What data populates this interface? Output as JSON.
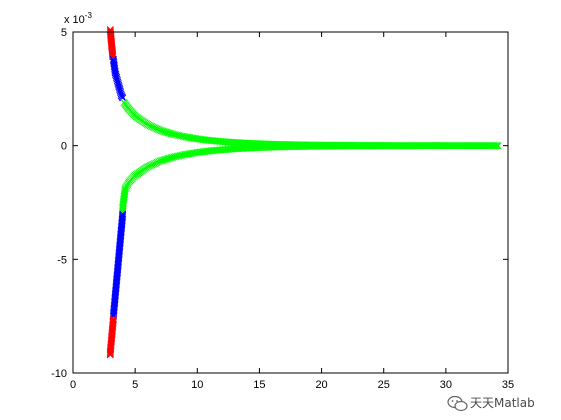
{
  "chart_data": {
    "type": "scatter",
    "title": "",
    "xlabel": "",
    "ylabel": "",
    "xlim": [
      0,
      35
    ],
    "ylim": [
      -0.01,
      0.005
    ],
    "x_ticks": [
      {
        "value": 0,
        "label": "0"
      },
      {
        "value": 5,
        "label": "5"
      },
      {
        "value": 10,
        "label": "10"
      },
      {
        "value": 15,
        "label": "15"
      },
      {
        "value": 20,
        "label": "20"
      },
      {
        "value": 25,
        "label": "25"
      },
      {
        "value": 30,
        "label": "30"
      },
      {
        "value": 35,
        "label": "35"
      }
    ],
    "y_ticks": [
      {
        "value": 0.005,
        "label": "5"
      },
      {
        "value": 0,
        "label": "0"
      },
      {
        "value": -0.005,
        "label": "-5"
      },
      {
        "value": -0.01,
        "label": "-10"
      }
    ],
    "y_exponent_label": "x 10",
    "y_exponent_power": "-3",
    "grid": false,
    "legend": "none",
    "series": [
      {
        "color": "#ff0000",
        "marker": "x",
        "points": [
          [
            3.0,
            0.0051
          ],
          [
            3.02,
            0.00495
          ],
          [
            3.05,
            0.0048
          ],
          [
            3.07,
            0.00465
          ],
          [
            3.1,
            0.0045
          ],
          [
            3.12,
            0.00435
          ],
          [
            3.15,
            0.0042
          ],
          [
            3.18,
            0.00405
          ],
          [
            3.2,
            0.0039
          ]
        ]
      },
      {
        "color": "#0000ff",
        "marker": "x",
        "points": [
          [
            3.25,
            0.0038
          ],
          [
            3.3,
            0.0036
          ],
          [
            3.35,
            0.0034
          ],
          [
            3.4,
            0.0032
          ],
          [
            3.5,
            0.003
          ],
          [
            3.6,
            0.0028
          ],
          [
            3.7,
            0.0026
          ],
          [
            3.8,
            0.0024
          ],
          [
            3.9,
            0.0022
          ],
          [
            4.0,
            0.0021
          ]
        ]
      },
      {
        "color": "#00ff00",
        "marker": "x",
        "points": [
          [
            4.1,
            0.0019
          ],
          [
            4.5,
            0.0016
          ],
          [
            5,
            0.0013
          ],
          [
            6,
            0.00093
          ],
          [
            7,
            0.00068
          ],
          [
            8,
            0.00051
          ],
          [
            9,
            0.00039
          ],
          [
            10,
            0.0003
          ],
          [
            11,
            0.00023
          ],
          [
            12,
            0.00018
          ],
          [
            13,
            0.00014
          ],
          [
            14,
            0.00011
          ],
          [
            15,
            8.5e-05
          ],
          [
            16,
            6.5e-05
          ],
          [
            17,
            5e-05
          ],
          [
            18,
            4e-05
          ],
          [
            20,
            2.5e-05
          ],
          [
            22,
            1.5e-05
          ],
          [
            24,
            1e-05
          ],
          [
            26,
            6e-06
          ],
          [
            28,
            4e-06
          ],
          [
            30,
            2e-06
          ],
          [
            32,
            1e-06
          ],
          [
            34.2,
            0.0
          ]
        ]
      },
      {
        "color": "#00ff00",
        "marker": "x",
        "points": [
          [
            4.2,
            -0.0019
          ],
          [
            4.5,
            -0.0016
          ],
          [
            5,
            -0.0013
          ],
          [
            6,
            -0.00093
          ],
          [
            7,
            -0.00068
          ],
          [
            8,
            -0.00051
          ],
          [
            9,
            -0.00039
          ],
          [
            10,
            -0.0003
          ],
          [
            11,
            -0.00023
          ],
          [
            12,
            -0.00018
          ],
          [
            13,
            -0.00014
          ],
          [
            14,
            -0.00011
          ],
          [
            15,
            -8.5e-05
          ],
          [
            16,
            -6.5e-05
          ],
          [
            17,
            -5e-05
          ],
          [
            18,
            -4e-05
          ],
          [
            20,
            -2.5e-05
          ],
          [
            22,
            -1.5e-05
          ],
          [
            24,
            -1e-05
          ],
          [
            26,
            -6e-06
          ],
          [
            28,
            -4e-06
          ],
          [
            30,
            -2e-06
          ],
          [
            32,
            -1e-06
          ],
          [
            34.2,
            0.0
          ]
        ]
      },
      {
        "color": "#00ff00",
        "marker": "x",
        "points": [
          [
            4.2,
            -0.0019
          ],
          [
            4.15,
            -0.0021
          ],
          [
            4.1,
            -0.0023
          ],
          [
            4.05,
            -0.0025
          ],
          [
            4.0,
            -0.0027
          ],
          [
            4.0,
            -0.0029
          ]
        ]
      },
      {
        "color": "#0000ff",
        "marker": "x",
        "points": [
          [
            4.0,
            -0.003
          ],
          [
            3.95,
            -0.0033
          ],
          [
            3.9,
            -0.0036
          ],
          [
            3.85,
            -0.0039
          ],
          [
            3.8,
            -0.0042
          ],
          [
            3.75,
            -0.0045
          ],
          [
            3.7,
            -0.0048
          ],
          [
            3.65,
            -0.0051
          ],
          [
            3.6,
            -0.0054
          ],
          [
            3.55,
            -0.0057
          ],
          [
            3.5,
            -0.006
          ],
          [
            3.45,
            -0.0063
          ],
          [
            3.4,
            -0.0066
          ],
          [
            3.35,
            -0.0069
          ],
          [
            3.3,
            -0.0072
          ],
          [
            3.25,
            -0.0075
          ]
        ]
      },
      {
        "color": "#ff0000",
        "marker": "x",
        "points": [
          [
            3.25,
            -0.0076
          ],
          [
            3.2,
            -0.0079
          ],
          [
            3.15,
            -0.0082
          ],
          [
            3.1,
            -0.0085
          ],
          [
            3.05,
            -0.0088
          ],
          [
            3.0,
            -0.0091
          ],
          [
            3.0,
            -0.0092
          ]
        ]
      }
    ]
  },
  "watermark": {
    "text": "天天Matlab",
    "icon": "wechat-icon"
  }
}
